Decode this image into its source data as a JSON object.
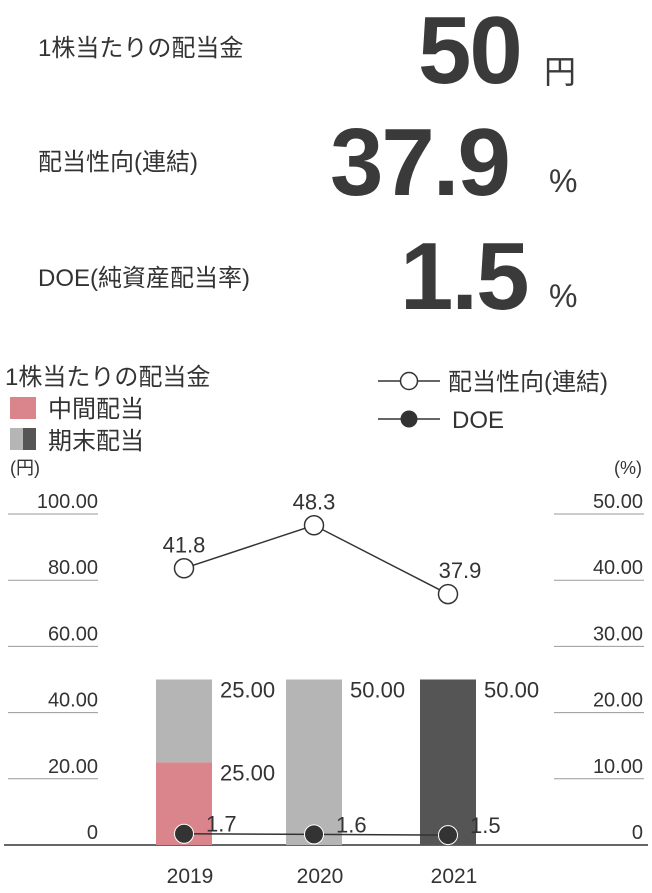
{
  "kpis": [
    {
      "label": "1株当たりの配当金",
      "value": "50",
      "unit": "円"
    },
    {
      "label": "配当性向(連結)",
      "value": "37.9",
      "unit": "%"
    },
    {
      "label": "DOE(純資産配当率)",
      "value": "1.5",
      "unit": "%"
    }
  ],
  "chart_data": {
    "type": "bar",
    "title": "1株当たりの配当金",
    "legend": {
      "interim": "中間配当",
      "year_end": "期末配当",
      "payout_ratio": "配当性向(連結)",
      "doe": "DOE"
    },
    "y_left_unit": "(円)",
    "y_right_unit": "(%)",
    "y_left_ticks": [
      "0",
      "20.00",
      "40.00",
      "60.00",
      "80.00",
      "100.00"
    ],
    "y_right_ticks": [
      "0",
      "10.00",
      "20.00",
      "30.00",
      "40.00",
      "50.00"
    ],
    "ylim_left": [
      0,
      100
    ],
    "ylim_right": [
      0,
      50
    ],
    "categories": [
      "2019",
      "2020",
      "2021"
    ],
    "series": [
      {
        "name": "中間配当",
        "values": [
          25,
          0,
          0
        ],
        "labels": [
          "25.00",
          "",
          ""
        ]
      },
      {
        "name": "期末配当",
        "values": [
          25,
          50,
          50
        ],
        "labels": [
          "25.00",
          "50.00",
          "50.00"
        ]
      },
      {
        "name": "配当性向(連結)",
        "values": [
          41.8,
          48.3,
          37.9
        ],
        "labels": [
          "41.8",
          "48.3",
          "37.9"
        ]
      },
      {
        "name": "DOE",
        "values": [
          1.7,
          1.6,
          1.5
        ],
        "labels": [
          "1.7",
          "1.6",
          "1.5"
        ]
      }
    ],
    "colors": {
      "interim": "#d9858b",
      "year_end_past": "#b5b5b5",
      "year_end_current": "#555555",
      "grid": "#9a9a9a",
      "line": "#333333"
    }
  }
}
